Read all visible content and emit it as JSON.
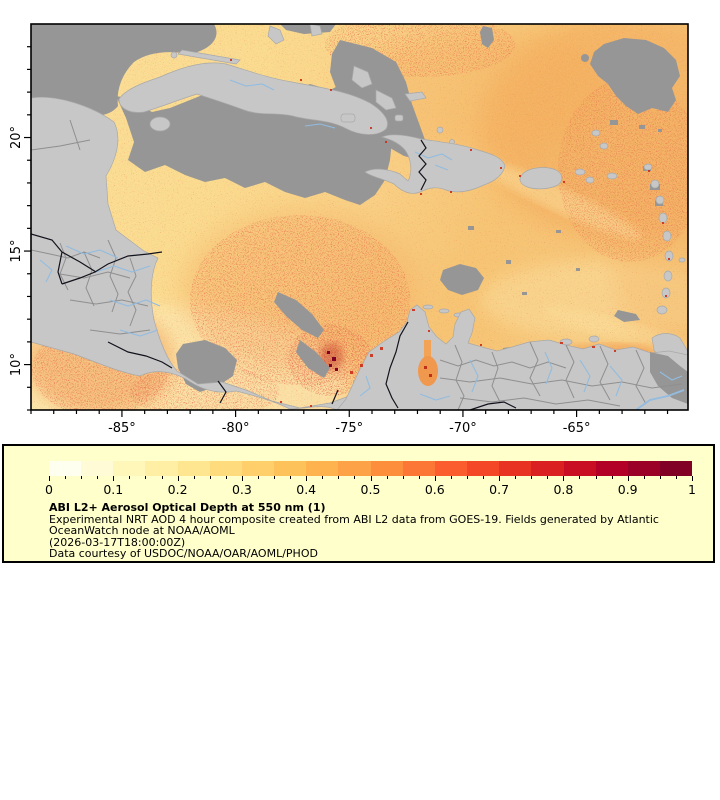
{
  "map": {
    "lon_range": {
      "min": -89.0,
      "max": -60.1
    },
    "lat_range": {
      "min": 8.0,
      "max": 25.0
    },
    "lon_ticks": [
      {
        "deg": -85,
        "label": "-85°"
      },
      {
        "deg": -80,
        "label": "-80°"
      },
      {
        "deg": -75,
        "label": "-75°"
      },
      {
        "deg": -70,
        "label": "-70°"
      },
      {
        "deg": -65,
        "label": "-65°"
      }
    ],
    "lat_ticks": [
      {
        "deg": 10,
        "label": "10°"
      },
      {
        "deg": 15,
        "label": "15°"
      },
      {
        "deg": 20,
        "label": "20°"
      }
    ],
    "minor_tick_step_deg": 1
  },
  "legend": {
    "title": "ABI L2+ Aerosol Optical Depth at 550 nm (1)",
    "desc_line1": "Experimental NRT AOD 4 hour composite created from ABI L2 data from GOES-19. Fields generated by Atlantic",
    "desc_line2": "OceanWatch node at NOAA/AOML",
    "timestamp": "(2026-03-17T18:00:00Z)",
    "courtesy": "Data courtesy of USDOC/NOAA/OAR/AOML/PHOD",
    "colorbar": {
      "min": 0,
      "max": 1,
      "tick_labels": [
        "0",
        "0.1",
        "0.2",
        "0.3",
        "0.4",
        "0.5",
        "0.6",
        "0.7",
        "0.8",
        "0.9",
        "1"
      ],
      "minor_step": 0.025,
      "colors": [
        "#FFFFF0",
        "#FFFBD6",
        "#FFF6BA",
        "#FFEFA4",
        "#FEE690",
        "#FEDB7C",
        "#FECF6A",
        "#FEC25A",
        "#FEB34E",
        "#FDA246",
        "#FD8E3C",
        "#FC7635",
        "#FB5D2E",
        "#F34727",
        "#E83222",
        "#DB2021",
        "#C90E23",
        "#B30026",
        "#9B0026",
        "#800026"
      ]
    }
  },
  "chart_data": {
    "type": "heatmap",
    "title": "ABI L2+ Aerosol Optical Depth at 550 nm (1)",
    "variable": "Aerosol Optical Depth at 550 nm",
    "value_range": [
      0,
      1
    ],
    "colorbar_ticks": [
      0,
      0.1,
      0.2,
      0.3,
      0.4,
      0.5,
      0.6,
      0.7,
      0.8,
      0.9,
      1
    ],
    "x_axis": {
      "ticks_deg": [
        -85,
        -80,
        -75,
        -70,
        -65
      ],
      "range_deg": [
        -89.0,
        -60.1
      ]
    },
    "y_axis": {
      "ticks_deg": [
        10,
        15,
        20
      ],
      "range_deg": [
        8.0,
        25.0
      ]
    },
    "legend_position": "bottom",
    "notes": "AOD raster over Caribbean; gray = no data/cloud, light gray = land"
  },
  "theme": {
    "page-bg": "#FFFFFF",
    "legend-bg": "#FFFFCC",
    "cloud": "#969696",
    "land": "#C7C7C7",
    "coast": "#A9A9A9",
    "river": "#92BCE0",
    "admin-border": "#8F8F8F",
    "country-border": "#12121C",
    "frame": "#000000"
  }
}
